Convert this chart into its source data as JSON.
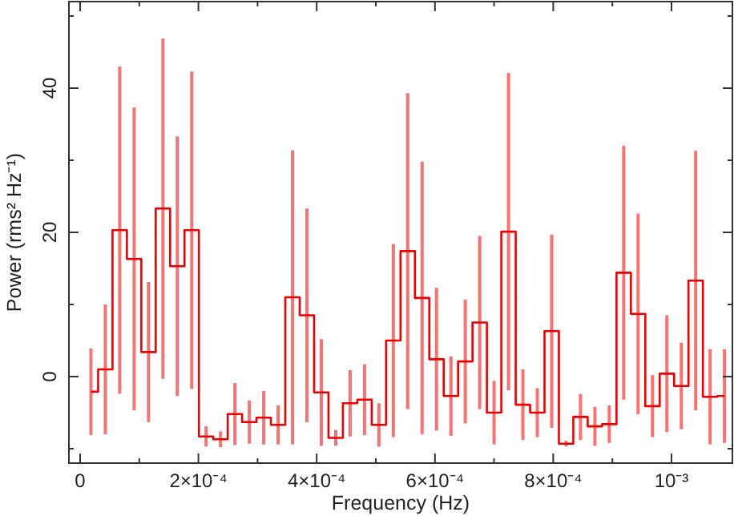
{
  "chart_data": {
    "type": "step",
    "xlabel": "Frequency (Hz)",
    "ylabel": "Power (rms² Hz⁻¹)",
    "x": [
      1.82e-05,
      4.26e-05,
      6.69e-05,
      9.13e-05,
      0.0001156,
      0.00014,
      0.0001643,
      0.0001887,
      0.000213,
      0.0002374,
      0.0002617,
      0.0002861,
      0.0003104,
      0.0003348,
      0.0003591,
      0.0003835,
      0.0004078,
      0.0004322,
      0.0004565,
      0.0004809,
      0.0005052,
      0.0005296,
      0.0005539,
      0.0005783,
      0.0006026,
      0.000627,
      0.0006513,
      0.0006757,
      0.0007,
      0.0007244,
      0.0007487,
      0.0007731,
      0.0007974,
      0.0008218,
      0.0008461,
      0.0008705,
      0.0008948,
      0.0009192,
      0.0009435,
      0.0009679,
      0.0009922,
      0.0010166,
      0.0010409,
      0.0010653,
      0.0010896
    ],
    "series": [
      {
        "color": "#ee0000",
        "values": [
          -2.1,
          1.0,
          20.3,
          16.3,
          3.4,
          23.3,
          15.3,
          20.3,
          -8.3,
          -8.7,
          -5.2,
          -6.3,
          -5.7,
          -6.7,
          11.0,
          8.5,
          -2.2,
          -8.5,
          -3.7,
          -3.2,
          -6.7,
          5.0,
          17.4,
          10.9,
          2.4,
          -2.7,
          2.1,
          7.5,
          -5.0,
          20.1,
          -3.9,
          -5.0,
          6.3,
          -9.3,
          -5.6,
          -6.9,
          -6.6,
          14.4,
          8.7,
          -4.1,
          0.4,
          -1.3,
          13.3,
          -2.8,
          -2.7
        ],
        "errors": [
          6,
          9,
          22.7,
          21,
          9.7,
          23.6,
          18,
          22,
          1.4,
          1.1,
          4.3,
          3,
          3.7,
          2.7,
          20.4,
          14.8,
          7.4,
          1.1,
          4.6,
          4.9,
          3,
          13.4,
          21.9,
          18.9,
          9.9,
          5.5,
          8.6,
          12,
          4.4,
          22,
          4.9,
          3.4,
          13.4,
          0.4,
          3.2,
          2.7,
          2.6,
          17.6,
          13.9,
          4.3,
          8.1,
          6,
          18,
          6.6,
          6.5
        ]
      }
    ],
    "xlim": [
      -1.9e-05,
      0.001103
    ],
    "xticks": [
      0,
      {
        "value": 0.0001,
        "label": null
      },
      {
        "value": 0.0002,
        "label": "2×10⁻⁴"
      },
      {
        "value": 0.0003,
        "label": null
      },
      {
        "value": 0.0004,
        "label": "4×10⁻⁴"
      },
      {
        "value": 0.0005,
        "label": null
      },
      {
        "value": 0.0006,
        "label": "6×10⁻⁴"
      },
      {
        "value": 0.0007,
        "label": null
      },
      {
        "value": 0.0008,
        "label": "8×10⁻⁴"
      },
      {
        "value": 0.0009,
        "label": null
      },
      {
        "value": 0.001,
        "label": "10⁻³"
      }
    ],
    "ylim": [
      -12,
      52
    ],
    "yticks": [
      {
        "value": -10,
        "label": null
      },
      0,
      {
        "value": 10,
        "label": null
      },
      20,
      {
        "value": 30,
        "label": null
      },
      40,
      {
        "value": 50,
        "label": null
      }
    ],
    "grid": false
  }
}
